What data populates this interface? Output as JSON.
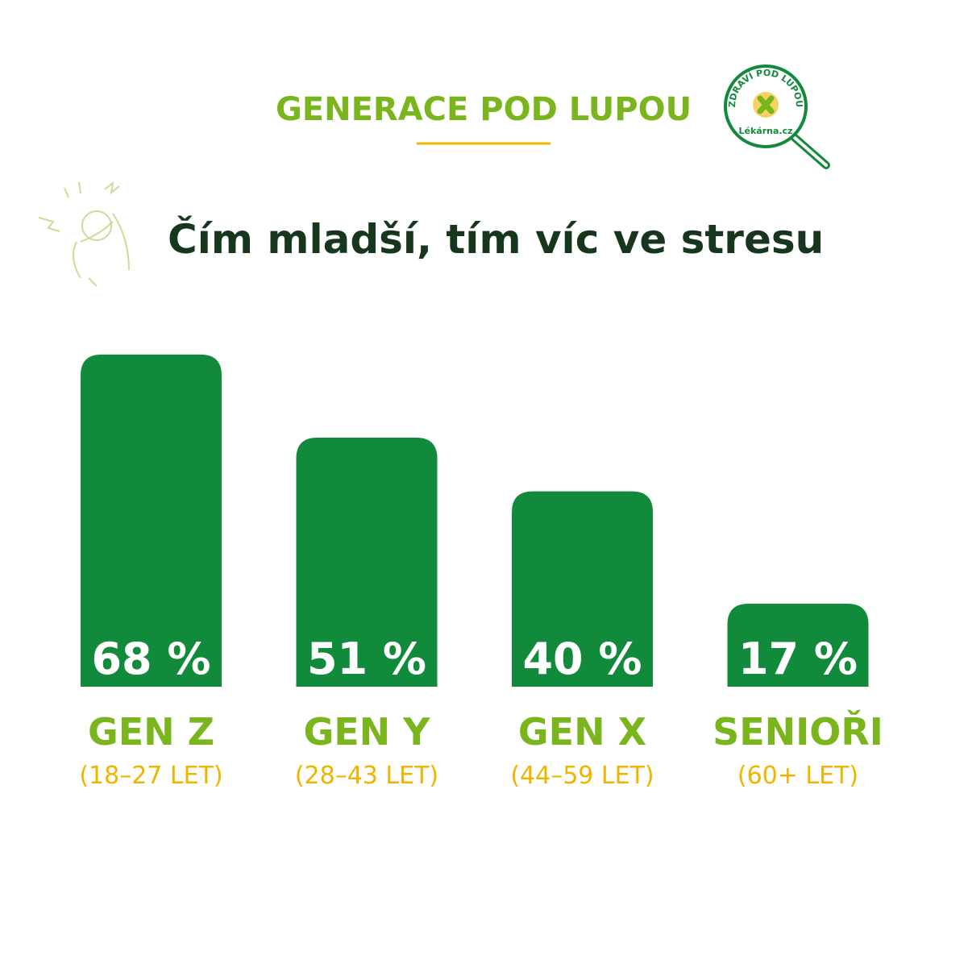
{
  "chart_data": {
    "type": "bar",
    "header": "GENERACE POD LUPOU",
    "logo_text": "ZDRAVÍ POD LUPOU",
    "logo_brand": "Lékárna.cz",
    "title": "Čím mladší, tím víc ve stresu",
    "categories": [
      "GEN Z",
      "GEN Y",
      "GEN X",
      "SENIOŘI"
    ],
    "subcategories": [
      "(18–27 LET)",
      "(28–43 LET)",
      "(44–59 LET)",
      "(60+ LET)"
    ],
    "values": [
      68,
      51,
      40,
      17
    ],
    "value_labels": [
      "68 %",
      "51 %",
      "40 %",
      "17 %"
    ],
    "color": "#118a3c"
  }
}
